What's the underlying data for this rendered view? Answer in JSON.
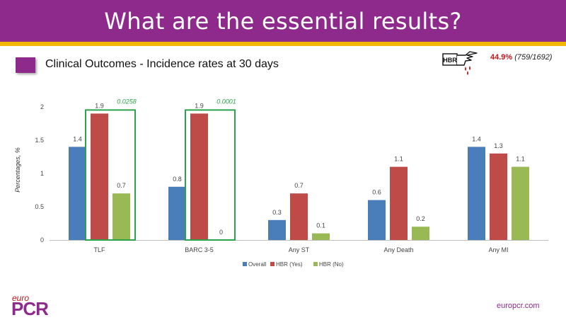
{
  "header": {
    "title": "What are the essential results?"
  },
  "subtitle": "Clinical Outcomes - Incidence rates at 30 days",
  "hbr_callout": {
    "label": "HBR",
    "percent": "44.9%",
    "count": "(759/1692)"
  },
  "colors": {
    "brand": "#8e2a8b",
    "accent": "#f2b705",
    "overall": "#4a7ebb",
    "hbr_yes": "#be4b48",
    "hbr_no": "#98b954",
    "significance": "#2ca24a"
  },
  "chart_data": {
    "type": "bar",
    "categories": [
      "TLF",
      "BARC 3-5",
      "Any ST",
      "Any Death",
      "Any MI"
    ],
    "series": [
      {
        "name": "Overall",
        "values": [
          1.4,
          0.8,
          0.3,
          0.6,
          1.4
        ]
      },
      {
        "name": "HBR (Yes)",
        "values": [
          1.9,
          1.9,
          0.7,
          1.1,
          1.3
        ]
      },
      {
        "name": "HBR (No)",
        "values": [
          0.7,
          0.0,
          0.1,
          0.2,
          1.1
        ]
      }
    ],
    "xlabel": "",
    "ylabel": "Percentages, %",
    "ylim": [
      0,
      2
    ],
    "yticks": [
      0,
      0.5,
      1,
      1.5,
      2
    ],
    "grid": false,
    "legend": "bottom",
    "annotations": [
      {
        "category": "TLF",
        "text": "0.0258"
      },
      {
        "category": "BARC 3-5",
        "text": "0.0001"
      }
    ]
  },
  "footer": {
    "logo_top": "euro",
    "logo_main": "PCR",
    "url": "europcr.com"
  }
}
